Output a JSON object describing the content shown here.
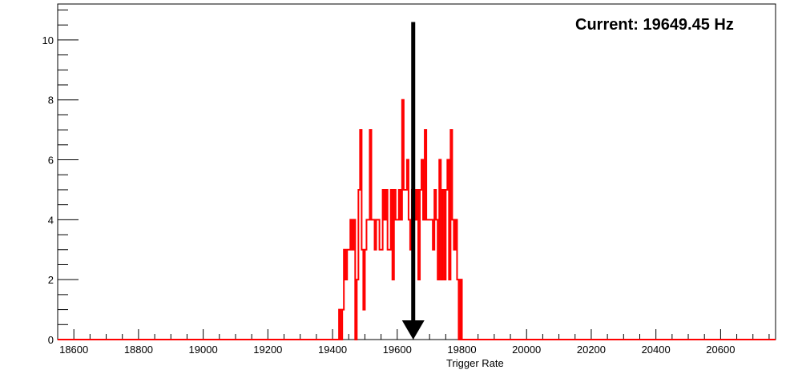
{
  "chart_data": {
    "type": "histogram",
    "xlabel": "Trigger Rate",
    "ylabel": "",
    "xlim": [
      18550,
      20770
    ],
    "ylim": [
      0,
      11.2
    ],
    "x_ticks": [
      "18600",
      "18800",
      "19000",
      "19200",
      "19400",
      "19600",
      "19800",
      "20000",
      "20200",
      "20400",
      "20600"
    ],
    "y_ticks": [
      "0",
      "2",
      "4",
      "6",
      "8",
      "10"
    ],
    "grid": false,
    "series_color": "#ff0000",
    "bin_width": 5,
    "bins": [
      [
        19420,
        1
      ],
      [
        19425,
        0
      ],
      [
        19430,
        1
      ],
      [
        19435,
        3
      ],
      [
        19440,
        2
      ],
      [
        19445,
        3
      ],
      [
        19450,
        3
      ],
      [
        19455,
        4
      ],
      [
        19460,
        3
      ],
      [
        19465,
        4
      ],
      [
        19470,
        0
      ],
      [
        19475,
        2
      ],
      [
        19480,
        5
      ],
      [
        19485,
        7
      ],
      [
        19490,
        3
      ],
      [
        19495,
        1
      ],
      [
        19500,
        3
      ],
      [
        19505,
        4
      ],
      [
        19510,
        4
      ],
      [
        19515,
        7
      ],
      [
        19520,
        4
      ],
      [
        19525,
        4
      ],
      [
        19530,
        3
      ],
      [
        19535,
        4
      ],
      [
        19540,
        4
      ],
      [
        19545,
        3
      ],
      [
        19550,
        3
      ],
      [
        19555,
        5
      ],
      [
        19560,
        4
      ],
      [
        19565,
        5
      ],
      [
        19570,
        3
      ],
      [
        19575,
        3
      ],
      [
        19580,
        5
      ],
      [
        19585,
        2
      ],
      [
        19590,
        5
      ],
      [
        19595,
        4
      ],
      [
        19600,
        4
      ],
      [
        19605,
        5
      ],
      [
        19610,
        4
      ],
      [
        19615,
        8
      ],
      [
        19620,
        5
      ],
      [
        19625,
        5
      ],
      [
        19630,
        6
      ],
      [
        19635,
        4
      ],
      [
        19640,
        3
      ],
      [
        19645,
        5
      ],
      [
        19650,
        5
      ],
      [
        19655,
        4
      ],
      [
        19660,
        5
      ],
      [
        19665,
        2
      ],
      [
        19670,
        5
      ],
      [
        19675,
        6
      ],
      [
        19680,
        4
      ],
      [
        19685,
        7
      ],
      [
        19690,
        4
      ],
      [
        19695,
        4
      ],
      [
        19700,
        4
      ],
      [
        19705,
        4
      ],
      [
        19710,
        3
      ],
      [
        19715,
        5
      ],
      [
        19720,
        4
      ],
      [
        19725,
        2
      ],
      [
        19730,
        6
      ],
      [
        19735,
        2
      ],
      [
        19740,
        5
      ],
      [
        19745,
        2
      ],
      [
        19750,
        5
      ],
      [
        19755,
        6
      ],
      [
        19760,
        2
      ],
      [
        19765,
        7
      ],
      [
        19770,
        4
      ],
      [
        19775,
        3
      ],
      [
        19780,
        4
      ],
      [
        19785,
        2
      ],
      [
        19790,
        0
      ],
      [
        19795,
        2
      ]
    ],
    "current_value": 19649.45,
    "annotation": "Current: 19649.45 Hz",
    "marker": {
      "type": "arrow",
      "x": 19649.45,
      "y_from": 10.6,
      "y_to": 0,
      "color": "#000000"
    }
  }
}
